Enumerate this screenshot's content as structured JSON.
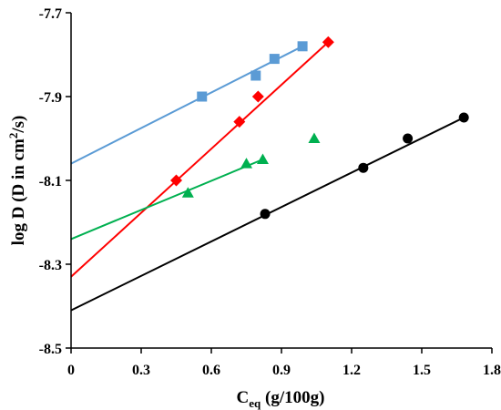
{
  "chart_data": {
    "type": "scatter",
    "xlabel": "C",
    "xlabel_subscript": "eq",
    "xlabel_rest": " (g/100g)",
    "ylabel_pre": "log D (D in cm",
    "ylabel_sup": "2",
    "ylabel_post": "/s)",
    "xlim": [
      0,
      1.8
    ],
    "ylim": [
      -8.5,
      -7.7
    ],
    "x_ticks": [
      0,
      0.3,
      0.6,
      0.9,
      1.2,
      1.5,
      1.8
    ],
    "y_ticks": [
      -8.5,
      -8.3,
      -8.1,
      -7.9,
      -7.7
    ],
    "x_tick_labels": [
      "0",
      "0.3",
      "0.6",
      "0.9",
      "1.2",
      "1.5",
      "1.8"
    ],
    "y_tick_labels": [
      "-8.5",
      "-8.3",
      "-8.1",
      "-7.9",
      "-7.7"
    ],
    "grid": false,
    "series": [
      {
        "marker": "square",
        "color": "#5B9BD5",
        "points": [
          [
            0.56,
            -7.9
          ],
          [
            0.79,
            -7.85
          ],
          [
            0.87,
            -7.81
          ],
          [
            0.99,
            -7.78
          ]
        ],
        "trendline": [
          [
            0,
            -8.06
          ],
          [
            0.99,
            -7.78
          ]
        ]
      },
      {
        "marker": "diamond",
        "color": "#FF0000",
        "points": [
          [
            0.45,
            -8.1
          ],
          [
            0.72,
            -7.96
          ],
          [
            0.8,
            -7.9
          ],
          [
            1.1,
            -7.77
          ]
        ],
        "trendline": [
          [
            0,
            -8.33
          ],
          [
            1.1,
            -7.77
          ]
        ]
      },
      {
        "marker": "triangle",
        "color": "#00B050",
        "points": [
          [
            0.5,
            -8.13
          ],
          [
            0.75,
            -8.06
          ],
          [
            0.82,
            -8.05
          ],
          [
            1.04,
            -8.0
          ]
        ],
        "trendline": [
          [
            0,
            -8.24
          ],
          [
            0.82,
            -8.05
          ]
        ]
      },
      {
        "marker": "circle",
        "color": "#000000",
        "points": [
          [
            0.83,
            -8.18
          ],
          [
            1.25,
            -8.07
          ],
          [
            1.44,
            -8.0
          ],
          [
            1.68,
            -7.95
          ]
        ],
        "trendline": [
          [
            0,
            -8.41
          ],
          [
            1.68,
            -7.95
          ]
        ]
      }
    ]
  }
}
